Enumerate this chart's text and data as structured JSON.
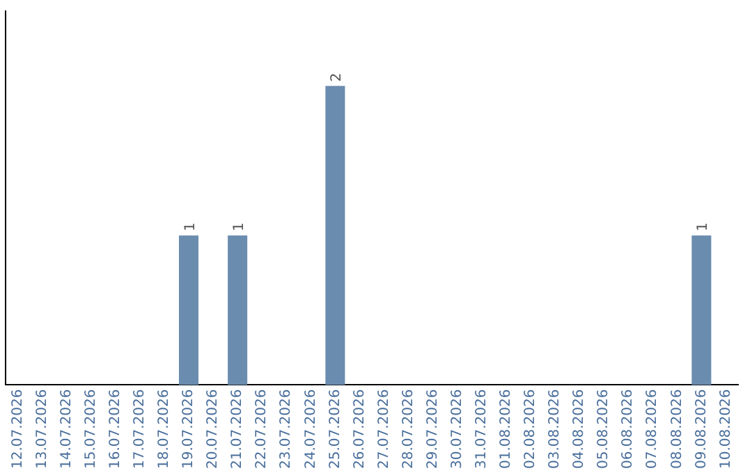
{
  "chart_data": {
    "type": "bar",
    "categories": [
      "12.07.2026",
      "13.07.2026",
      "14.07.2026",
      "15.07.2026",
      "16.07.2026",
      "17.07.2026",
      "18.07.2026",
      "19.07.2026",
      "20.07.2026",
      "21.07.2026",
      "22.07.2026",
      "23.07.2026",
      "24.07.2026",
      "25.07.2026",
      "26.07.2026",
      "27.07.2026",
      "28.07.2026",
      "29.07.2026",
      "30.07.2026",
      "31.07.2026",
      "01.08.2026",
      "02.08.2026",
      "03.08.2026",
      "04.08.2026",
      "05.08.2026",
      "06.08.2026",
      "07.08.2026",
      "08.08.2026",
      "09.08.2026",
      "10.08.2026"
    ],
    "values": [
      0,
      0,
      0,
      0,
      0,
      0,
      0,
      1,
      0,
      1,
      0,
      0,
      0,
      2,
      0,
      0,
      0,
      0,
      0,
      0,
      0,
      0,
      0,
      0,
      0,
      0,
      0,
      0,
      1,
      0
    ],
    "value_labels": [
      null,
      null,
      null,
      null,
      null,
      null,
      null,
      "1",
      null,
      "1",
      null,
      null,
      null,
      "2",
      null,
      null,
      null,
      null,
      null,
      null,
      null,
      null,
      null,
      null,
      null,
      null,
      null,
      null,
      "1",
      null
    ],
    "color": "#6a8caf",
    "grid": false,
    "legend": false,
    "tick_labels": "x"
  }
}
